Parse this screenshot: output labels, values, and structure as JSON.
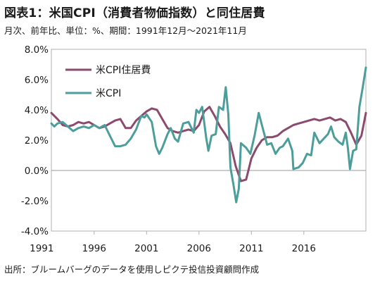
{
  "header": {
    "title": "図表1：米国CPI（消費者物価指数）と同住居費",
    "subtitle": "月次、前年比、単位：%、期間：1991年12月～2021年11月"
  },
  "footer": {
    "source": "出所：ブルームバーグのデータを使用しピクテ投信投資顧問作成"
  },
  "colors": {
    "housing": "#8c4a6e",
    "cpi": "#4c9e9b",
    "zero_line": "#9a9a9a",
    "frame": "#b0b0b0"
  },
  "chart_data": {
    "type": "line",
    "title": "",
    "xlabel": "",
    "ylabel": "",
    "xlim": [
      1991.92,
      2021.92
    ],
    "ylim": [
      -4,
      8
    ],
    "y_ticks": [
      "-4.0%",
      "-2.0%",
      "0.0%",
      "2.0%",
      "4.0%",
      "6.0%",
      "8.0%"
    ],
    "y_tick_values": [
      -4,
      -2,
      0,
      2,
      4,
      6,
      8
    ],
    "x_ticks": [
      "1991",
      "1996",
      "2001",
      "2006",
      "2011",
      "2016"
    ],
    "grid": false,
    "legend_position": "top-left",
    "series": [
      {
        "name": "米CPI住居費",
        "x": [
          1991.92,
          1992.5,
          1993.0,
          1993.5,
          1994.0,
          1994.5,
          1995.0,
          1995.5,
          1996.0,
          1996.5,
          1997.0,
          1997.5,
          1998.0,
          1998.5,
          1999.0,
          1999.5,
          2000.0,
          2000.5,
          2001.0,
          2001.5,
          2002.0,
          2002.5,
          2003.0,
          2003.5,
          2004.0,
          2004.5,
          2005.0,
          2005.5,
          2006.0,
          2006.5,
          2007.0,
          2007.5,
          2008.0,
          2008.5,
          2009.0,
          2009.5,
          2010.0,
          2010.5,
          2011.0,
          2011.5,
          2012.0,
          2012.5,
          2013.0,
          2013.5,
          2014.0,
          2014.5,
          2015.0,
          2015.5,
          2016.0,
          2016.5,
          2017.0,
          2017.5,
          2018.0,
          2018.5,
          2019.0,
          2019.5,
          2020.0,
          2020.5,
          2021.0,
          2021.5,
          2021.92
        ],
        "values": [
          3.8,
          3.4,
          3.0,
          2.9,
          3.0,
          3.2,
          3.1,
          3.2,
          3.0,
          2.8,
          2.9,
          3.1,
          3.3,
          3.4,
          2.8,
          2.8,
          3.3,
          3.6,
          3.9,
          4.1,
          4.0,
          3.4,
          2.8,
          2.6,
          2.5,
          2.6,
          2.7,
          2.6,
          3.0,
          3.9,
          4.2,
          3.6,
          2.9,
          2.4,
          1.8,
          0.3,
          -0.7,
          -0.6,
          0.8,
          1.5,
          2.0,
          2.2,
          2.2,
          2.3,
          2.6,
          2.8,
          3.0,
          3.1,
          3.2,
          3.3,
          3.4,
          3.3,
          3.4,
          3.5,
          3.3,
          3.4,
          3.2,
          2.5,
          1.7,
          2.3,
          3.8
        ]
      },
      {
        "name": "米CPI",
        "x": [
          1991.92,
          1992.2,
          1992.5,
          1993.0,
          1993.5,
          1994.0,
          1994.5,
          1995.0,
          1995.5,
          1996.0,
          1996.5,
          1997.0,
          1997.5,
          1998.0,
          1998.5,
          1999.0,
          1999.5,
          2000.0,
          2000.5,
          2000.8,
          2001.0,
          2001.5,
          2001.9,
          2002.2,
          2002.5,
          2003.0,
          2003.3,
          2003.7,
          2004.0,
          2004.5,
          2005.0,
          2005.5,
          2005.75,
          2006.0,
          2006.3,
          2006.7,
          2006.9,
          2007.2,
          2007.6,
          2007.9,
          2008.3,
          2008.55,
          2008.8,
          2009.0,
          2009.3,
          2009.55,
          2009.8,
          2010.0,
          2010.5,
          2010.9,
          2011.3,
          2011.7,
          2012.0,
          2012.5,
          2012.9,
          2013.3,
          2013.7,
          2014.0,
          2014.5,
          2014.9,
          2015.0,
          2015.5,
          2015.9,
          2016.3,
          2016.7,
          2017.0,
          2017.5,
          2017.9,
          2018.3,
          2018.6,
          2018.9,
          2019.3,
          2019.7,
          2020.0,
          2020.2,
          2020.4,
          2020.7,
          2021.0,
          2021.3,
          2021.6,
          2021.92
        ],
        "values": [
          3.1,
          2.9,
          3.1,
          3.2,
          2.9,
          2.6,
          2.8,
          2.9,
          2.8,
          3.0,
          2.8,
          3.0,
          2.3,
          1.6,
          1.6,
          1.7,
          2.1,
          2.7,
          3.6,
          3.5,
          3.7,
          3.2,
          1.6,
          1.1,
          1.5,
          2.4,
          2.8,
          2.1,
          1.9,
          3.1,
          3.2,
          2.5,
          4.0,
          3.8,
          4.2,
          2.1,
          1.3,
          2.3,
          2.4,
          4.2,
          4.0,
          5.5,
          3.7,
          0.2,
          -1.0,
          -2.1,
          -1.2,
          1.8,
          1.5,
          1.1,
          2.3,
          3.8,
          3.0,
          1.7,
          1.8,
          1.1,
          1.5,
          1.6,
          2.1,
          1.3,
          0.1,
          0.2,
          0.5,
          1.1,
          1.0,
          2.5,
          1.8,
          2.1,
          2.4,
          2.9,
          2.2,
          1.9,
          1.7,
          2.5,
          1.5,
          0.1,
          1.3,
          1.4,
          4.2,
          5.4,
          6.8
        ]
      }
    ]
  }
}
